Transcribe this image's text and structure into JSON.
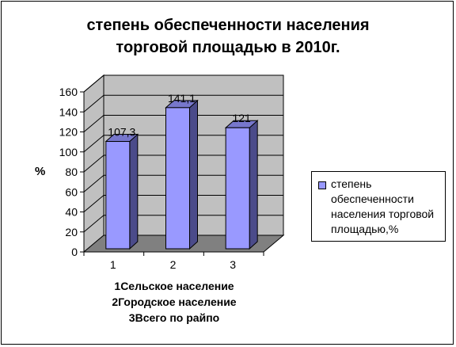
{
  "chart_data": {
    "type": "bar",
    "title_lines": [
      "степень обеспеченности населения",
      "торговой площадью в 2010г."
    ],
    "ylabel": "%",
    "categories": [
      "1",
      "2",
      "3"
    ],
    "series": [
      {
        "name": "степень обеспеченности населения торговой площадью,%",
        "values": [
          107.3,
          141.1,
          121
        ]
      }
    ],
    "data_labels": [
      "107,3",
      "141,1",
      "121"
    ],
    "y_ticks": [
      0,
      20,
      40,
      60,
      80,
      100,
      120,
      140,
      160
    ],
    "ylim": [
      0,
      160
    ],
    "grid": true,
    "legend_position": "right",
    "category_descriptions": [
      "1Сельское население",
      "2Городское население",
      "3Всего по райпо"
    ],
    "colors": {
      "bar_front": "#9999ff",
      "bar_side": "#4b4b8a",
      "bar_top": "#7777cc",
      "wall": "#c0c0c0",
      "floor": "#808080"
    }
  }
}
